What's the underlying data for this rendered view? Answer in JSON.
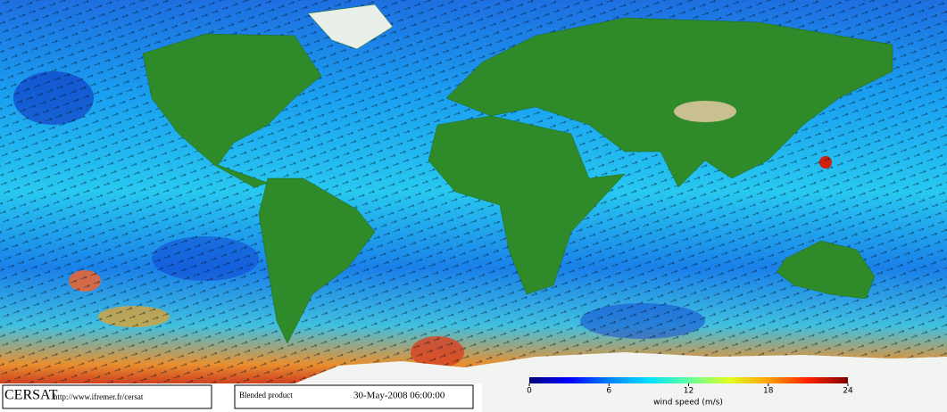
{
  "footer": {
    "logo": "CERSAT",
    "url": "http://www.ifremer.fr/cersat",
    "product": "Blended product",
    "timestamp": "30-May-2008 06:00:00"
  },
  "colorbar": {
    "label": "wind speed (m/s)",
    "range": [
      0,
      24
    ],
    "ticks": [
      0,
      6,
      12,
      18,
      24
    ],
    "colors": [
      "#00007a",
      "#0000ff",
      "#0080ff",
      "#00e0ff",
      "#60ffa0",
      "#e0ff20",
      "#ffa000",
      "#ff2000",
      "#800000"
    ]
  }
}
